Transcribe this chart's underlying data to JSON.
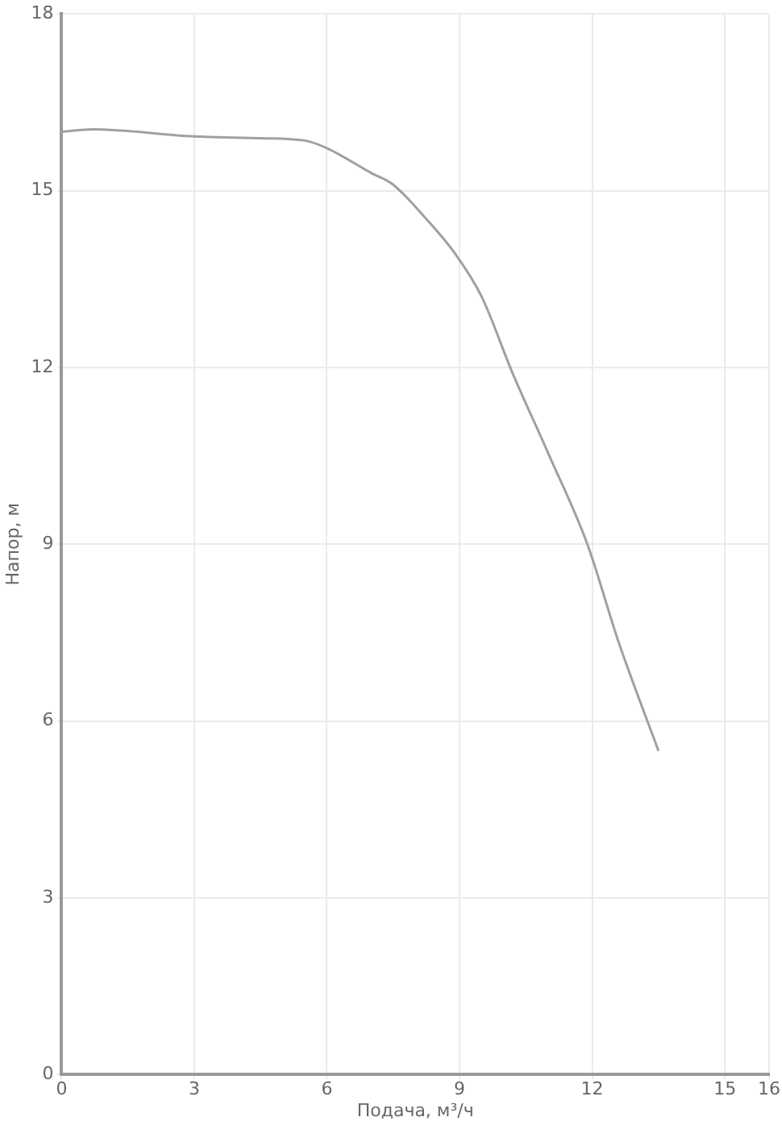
{
  "chart_data": {
    "type": "line",
    "xlabel": "Подача, м³/ч",
    "ylabel": "Напор, м",
    "x": [
      0,
      0.7,
      3,
      4.5,
      5.5,
      6,
      7,
      7.5,
      8.2,
      8.9,
      9.5,
      10.2,
      11.0,
      11.9,
      12.6,
      13.5
    ],
    "series": [
      {
        "color": "#a0a0a0",
        "values": [
          16.0,
          16.04,
          15.92,
          15.89,
          15.85,
          15.72,
          15.3,
          15.1,
          14.56,
          13.93,
          13.2,
          11.9,
          10.55,
          8.98,
          7.33,
          5.49
        ]
      }
    ],
    "xlim": [
      0,
      16
    ],
    "xticks": [
      0,
      3,
      6,
      9,
      12,
      15,
      16
    ],
    "ylim": [
      0,
      18
    ],
    "yticks": [
      0,
      3,
      6,
      9,
      12,
      15,
      18
    ],
    "grid": true,
    "marker": "none",
    "line_style": "solid",
    "legend": false
  }
}
